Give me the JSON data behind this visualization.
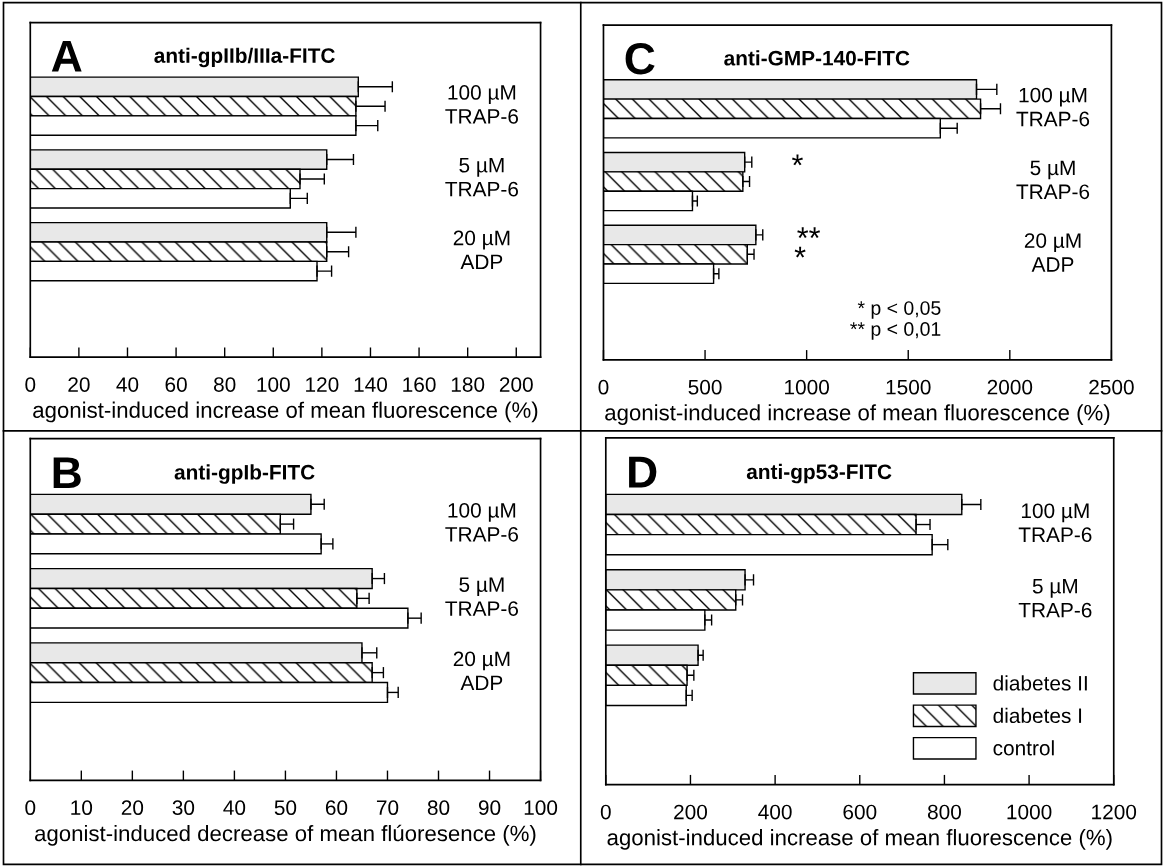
{
  "chart_data": [
    {
      "type": "bar",
      "orientation": "horizontal",
      "title": "A",
      "subtitle": "anti-gpIIb/IIIa-FITC",
      "xlabel": "agonist-induced increase of mean fluorescence (%)",
      "categories": [
        "100 µM\nTRAP-6",
        "5 µM\nTRAP-6",
        "20 µM\nADP"
      ],
      "xlim": [
        0,
        210
      ],
      "xticks": [
        0,
        20,
        40,
        60,
        80,
        100,
        120,
        140,
        160,
        180,
        200
      ],
      "grid": false,
      "legend": false,
      "series": [
        {
          "color": "#e8e8e8",
          "values": [
            135,
            122,
            122
          ],
          "errors": [
            [
              135,
              149
            ],
            [
              122,
              133
            ],
            [
              122,
              134
            ]
          ]
        },
        {
          "color": "#000000",
          "values": [
            134,
            111,
            122
          ],
          "errors": [
            [
              134,
              146
            ],
            [
              111,
              121
            ],
            [
              122,
              131
            ]
          ]
        },
        {
          "color": "#ffffff",
          "values": [
            134,
            107,
            118
          ],
          "errors": [
            [
              134,
              143
            ],
            [
              107,
              114
            ],
            [
              118,
              124
            ]
          ]
        }
      ]
    },
    {
      "type": "bar",
      "orientation": "horizontal",
      "title": "B",
      "subtitle": "anti-gpIb-FITC",
      "xlabel": "agonist-induced decrease of mean flúoresence (%)",
      "categories": [
        "100 µM\nTRAP-6",
        "5 µM\nTRAP-6",
        "20 µM\nADP"
      ],
      "xlim": [
        0,
        100
      ],
      "xticks": [
        0,
        10,
        20,
        30,
        40,
        50,
        60,
        70,
        80,
        90,
        100
      ],
      "grid": false,
      "legend": false,
      "series": [
        {
          "color": "#e8e8e8",
          "values": [
            55,
            67,
            65
          ],
          "errors": [
            [
              55,
              57.6
            ],
            [
              67,
              69.4
            ],
            [
              65,
              67.9
            ]
          ]
        },
        {
          "color": "#000000",
          "values": [
            49,
            64,
            67
          ],
          "errors": [
            [
              49,
              51.6
            ],
            [
              64,
              66.4
            ],
            [
              67,
              69.2
            ]
          ]
        },
        {
          "color": "#ffffff",
          "values": [
            57,
            74,
            70
          ],
          "errors": [
            [
              57,
              59.3
            ],
            [
              74,
              76.6
            ],
            [
              70,
              72.1
            ]
          ]
        }
      ]
    },
    {
      "type": "bar",
      "orientation": "horizontal",
      "title": "C",
      "subtitle": "anti-GMP-140-FITC",
      "xlabel": "agonist-induced increase of mean fluorescence (%)",
      "categories": [
        "100 µM\nTRAP-6",
        "5 µM\nTRAP-6",
        "20 µM\nADP"
      ],
      "xlim": [
        0,
        2500
      ],
      "xticks": [
        0,
        500,
        1000,
        1500,
        2000,
        2500
      ],
      "grid": false,
      "legend": false,
      "annotations": [
        {
          "text": "*",
          "x": 695,
          "y": "5 µM\nTRAP-6"
        },
        {
          "text": "**",
          "x": 750,
          "y": "20 µM\nADP"
        },
        {
          "text": "*",
          "x": 708,
          "y": "20 µM\nADP"
        },
        "* p < 0,05\n** p < 0,01"
      ],
      "series": [
        {
          "color": "#e8e8e8",
          "values": [
            1836,
            695,
            750
          ],
          "errors": [
            [
              1836,
              1936
            ],
            [
              695,
              730
            ],
            [
              750,
              784
            ]
          ]
        },
        {
          "color": "#000000",
          "values": [
            1856,
            686,
            708
          ],
          "errors": [
            [
              1856,
              1954
            ],
            [
              686,
              719
            ],
            [
              708,
              741
            ]
          ]
        },
        {
          "color": "#ffffff",
          "values": [
            1658,
            438,
            542
          ],
          "errors": [
            [
              1658,
              1741
            ],
            [
              438,
              462
            ],
            [
              542,
              568
            ]
          ]
        }
      ]
    },
    {
      "type": "bar",
      "orientation": "horizontal",
      "title": "D",
      "subtitle": "anti-gp53-FITC",
      "xlabel": "agonist-induced increase of mean fluorescence (%)",
      "categories": [
        "100 µM\nTRAP-6",
        "5 µM\nTRAP-6",
        null
      ],
      "xlim": [
        0,
        1200
      ],
      "xticks": [
        0,
        200,
        400,
        600,
        800,
        1000,
        1200
      ],
      "grid": false,
      "legend": "bottom right",
      "series": [
        {
          "name": "diabetes II",
          "color": "#e8e8e8",
          "values": [
            841,
            329,
            218
          ],
          "errors": [
            [
              841,
              886
            ],
            [
              329,
              349
            ],
            [
              218,
              230
            ]
          ]
        },
        {
          "name": "diabetes I",
          "color": "#000000",
          "values": [
            733,
            307,
            192
          ],
          "errors": [
            [
              733,
              766
            ],
            [
              307,
              323
            ],
            [
              192,
              208
            ]
          ]
        },
        {
          "name": "control",
          "color": "#ffffff",
          "values": [
            771,
            234,
            190
          ],
          "errors": [
            [
              771,
              808
            ],
            [
              234,
              250
            ],
            [
              190,
              204
            ]
          ]
        }
      ]
    }
  ]
}
